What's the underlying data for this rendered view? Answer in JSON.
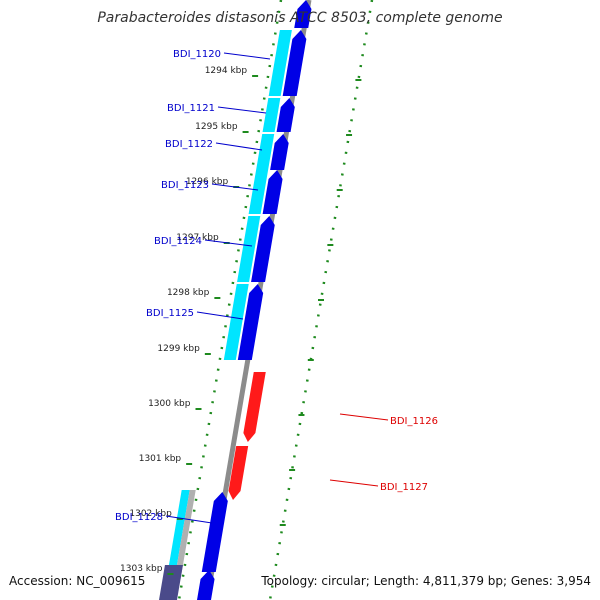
{
  "title": "Parabacteroides distasonis ATCC 8503, complete genome",
  "footer": {
    "accession": "Accession: NC_009615",
    "summary": "Topology: circular; Length: 4,811,379 bp; Genes: 3,954"
  },
  "colors": {
    "forward_gene": "#0000e6",
    "forward_cds": "#00e5ff",
    "reverse_gene": "#ff1a1a",
    "backbone": "#8c8c8c",
    "tick": "#1e8a1e",
    "forward_label": "#0000cc",
    "reverse_label": "#dd0000",
    "pseudo_cds": "#b0b0b0",
    "dark_cds": "#4a4a8a"
  },
  "scale": {
    "unit": "kbp",
    "ticks": [
      "1294 kbp",
      "1295 kbp",
      "1296 kbp",
      "1297 kbp",
      "1298 kbp",
      "1299 kbp",
      "1300 kbp",
      "1301 kbp",
      "1302 kbp",
      "1303 kbp"
    ]
  },
  "genes": [
    {
      "id": "BDI_1120",
      "strand": "+"
    },
    {
      "id": "BDI_1121",
      "strand": "+"
    },
    {
      "id": "BDI_1122",
      "strand": "+"
    },
    {
      "id": "BDI_1123",
      "strand": "+"
    },
    {
      "id": "BDI_1124",
      "strand": "+"
    },
    {
      "id": "BDI_1125",
      "strand": "+"
    },
    {
      "id": "BDI_1126",
      "strand": "-"
    },
    {
      "id": "BDI_1127",
      "strand": "-"
    },
    {
      "id": "BDI_1128",
      "strand": "+"
    }
  ]
}
